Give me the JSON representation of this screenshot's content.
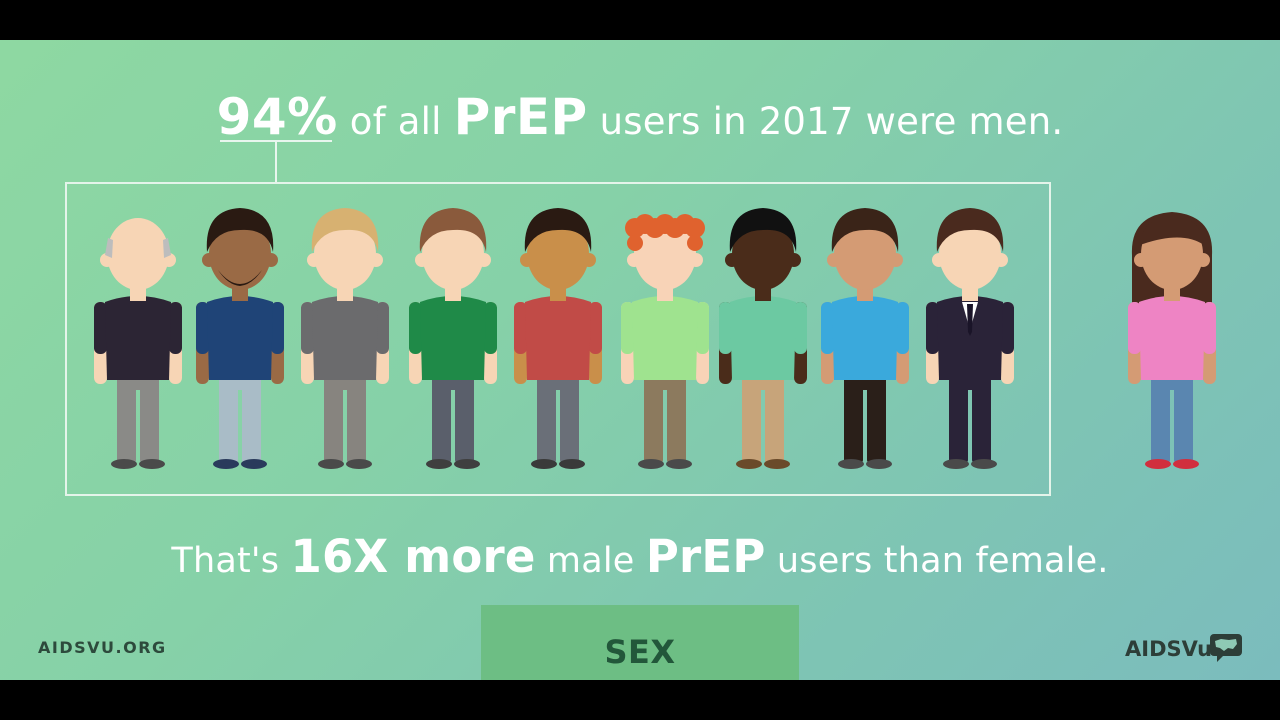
{
  "headline": {
    "percent": "94%",
    "part1": "of all",
    "term": "PrEP",
    "part2": "users in 2017 were men."
  },
  "subline": {
    "part1": "That's",
    "emphasis": "16X more",
    "part2": "male",
    "term": "PrEP",
    "part3": "users than female."
  },
  "footer": {
    "site": "AIDSVU.ORG",
    "tab": "SEX",
    "brand": "AIDSVu",
    "brand_icon": "us-map-chat-icon"
  },
  "figures": [
    {
      "id": "man-bald",
      "skin": "#f7d5b5",
      "hair": "#bdbdbd",
      "shirt": "#2c2534",
      "pants": "#8a8a87",
      "shoes": "#4a4a4a"
    },
    {
      "id": "man-beard",
      "skin": "#9a6a45",
      "hair": "#2a1a12",
      "shirt": "#1f4477",
      "pants": "#a9bcc7",
      "shoes": "#2a3b5c"
    },
    {
      "id": "man-blond",
      "skin": "#f7d5b5",
      "hair": "#d7b171",
      "shirt": "#6b6b6d",
      "pants": "#87847f",
      "shoes": "#4a4a4a"
    },
    {
      "id": "man-green",
      "skin": "#f7d5b5",
      "hair": "#8a5a3c",
      "shirt": "#1f8a48",
      "pants": "#5a5f6b",
      "shoes": "#3f3f3f"
    },
    {
      "id": "man-red",
      "skin": "#c98f4a",
      "hair": "#2a1a12",
      "shirt": "#c14b47",
      "pants": "#6a6f78",
      "shoes": "#3a3a3a"
    },
    {
      "id": "man-redhead",
      "skin": "#f8d3b7",
      "hair": "#e0622e",
      "shirt": "#9fe38f",
      "pants": "#8c7a5e",
      "shoes": "#4a4a4a"
    },
    {
      "id": "man-dark",
      "skin": "#4a2c1a",
      "hair": "#111111",
      "shirt": "#6cc9a2",
      "pants": "#c7a47a",
      "shoes": "#6a4a2a"
    },
    {
      "id": "man-blue",
      "skin": "#d49b74",
      "hair": "#3a2418",
      "shirt": "#3aa9dc",
      "pants": "#2a1f19",
      "shoes": "#4a4a4a"
    },
    {
      "id": "man-suit",
      "skin": "#f7d5b5",
      "hair": "#4a2a1e",
      "shirt": "#2a2338",
      "pants": "#2a2338",
      "shoes": "#4a4a4a"
    },
    {
      "id": "woman-pink",
      "skin": "#d49b74",
      "hair": "#4a2a1e",
      "shirt": "#ee84c4",
      "pants": "#5a86b0",
      "shoes": "#d12e3e"
    }
  ]
}
